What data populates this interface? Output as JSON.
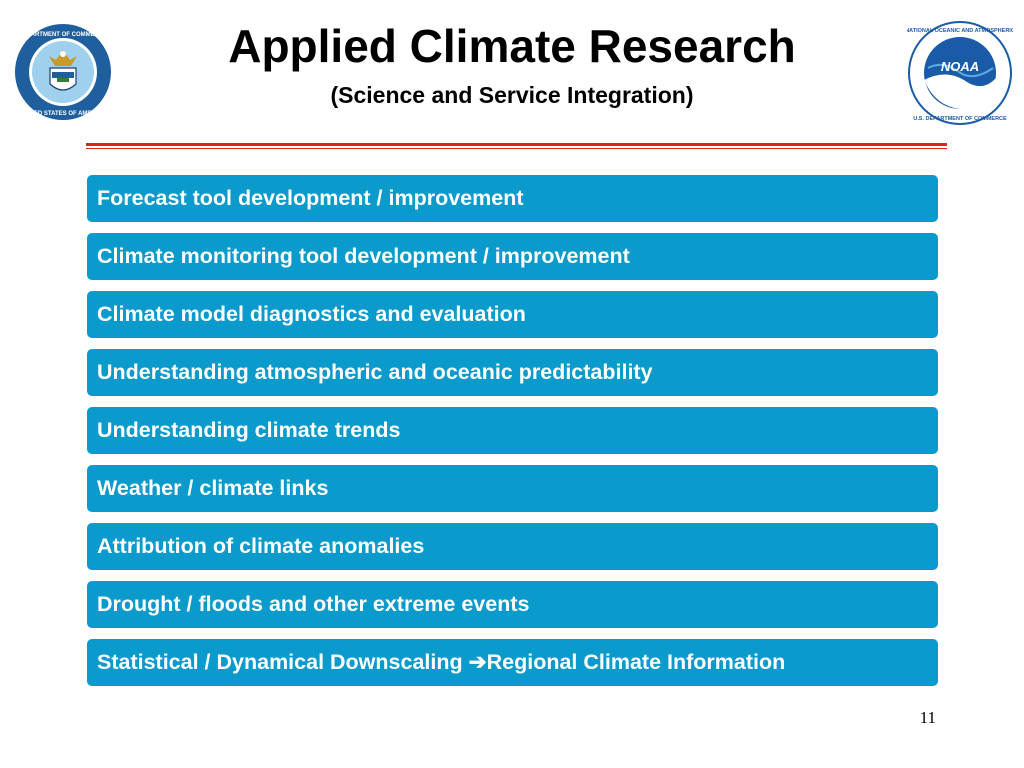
{
  "header": {
    "title": "Applied Climate Research",
    "subtitle": "(Science and Service Integration)"
  },
  "logos": {
    "left": {
      "icon": "department-of-commerce-seal-icon",
      "text": "DEPARTMENT OF COMMERCE · UNITED STATES OF AMERICA"
    },
    "right": {
      "icon": "noaa-logo-icon",
      "text": "NOAA",
      "ring_text": "NATIONAL OCEANIC AND ATMOSPHERIC ADMINISTRATION · U.S. DEPARTMENT OF COMMERCE"
    }
  },
  "colors": {
    "item_background": "#0a9acb",
    "rule": "#e2231a"
  },
  "items": [
    {
      "label": "Forecast tool development / improvement"
    },
    {
      "label": "Climate monitoring tool development / improvement"
    },
    {
      "label": "Climate model diagnostics and evaluation"
    },
    {
      "label": "Understanding atmospheric and oceanic predictability"
    },
    {
      "label": "Understanding climate trends"
    },
    {
      "label": "Weather / climate links"
    },
    {
      "label": "Attribution of climate anomalies"
    },
    {
      "label": "Drought / floods and other extreme events"
    },
    {
      "label_before": "Statistical / Dynamical Downscaling ",
      "arrow": "➔",
      "label_after": "Regional Climate Information"
    }
  ],
  "footer": {
    "page_number": "11"
  }
}
